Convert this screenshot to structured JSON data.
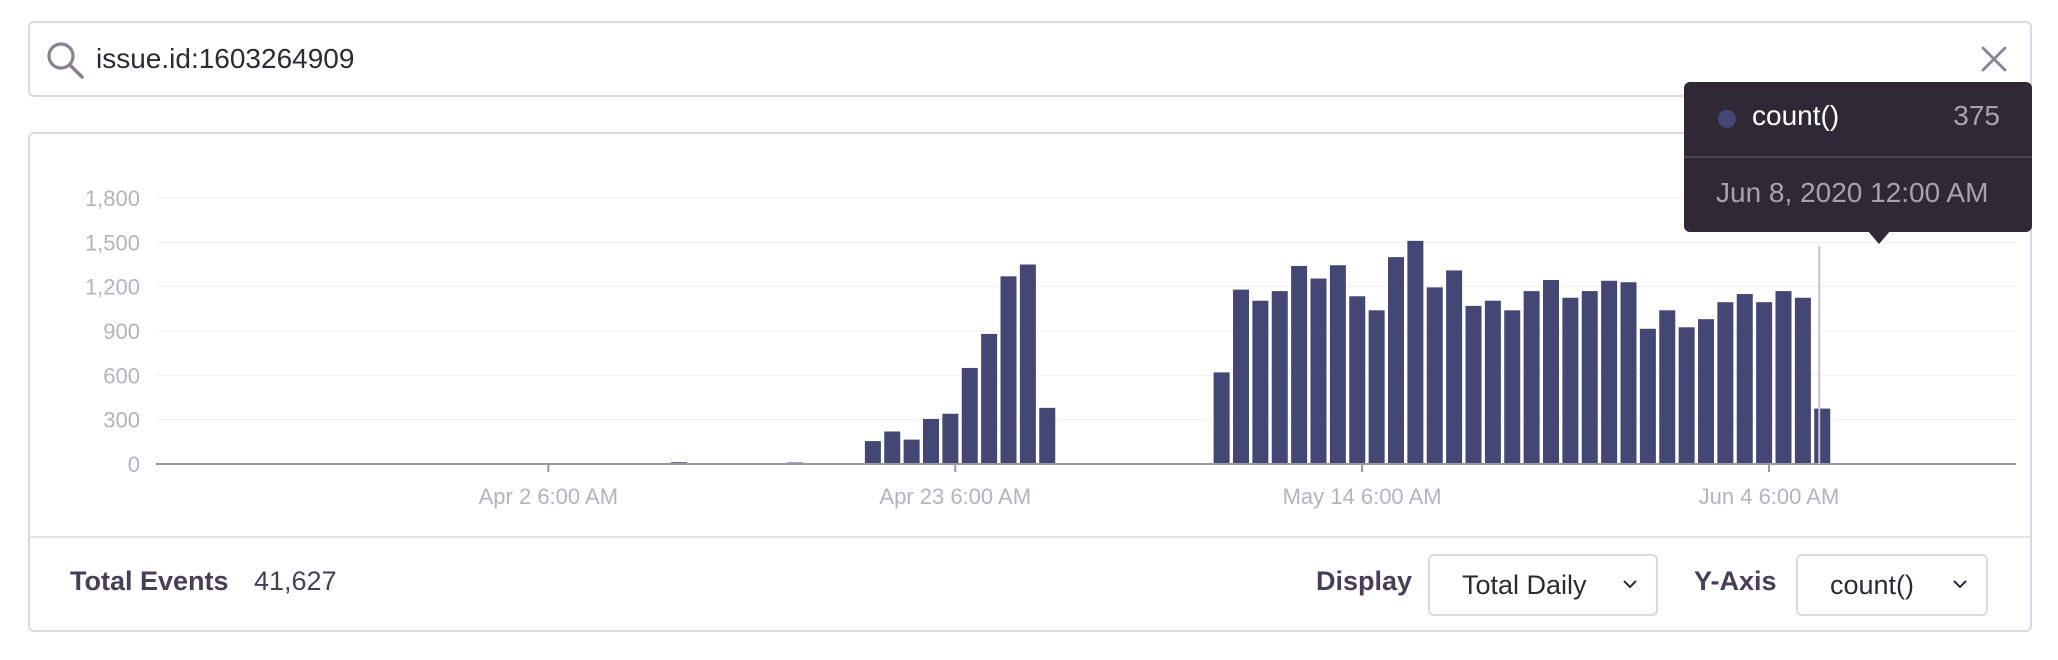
{
  "search": {
    "query": "issue.id:1603264909"
  },
  "chart_data": {
    "type": "bar",
    "series_name": "count()",
    "color": "#444674",
    "ylim": [
      0,
      1800
    ],
    "yticks": [
      0,
      300,
      600,
      900,
      1200,
      1500,
      1800
    ],
    "ytick_labels": [
      "0",
      "300",
      "600",
      "900",
      "1,200",
      "1,500",
      "1,800"
    ],
    "x_start_day": 0,
    "x_end_day": 96,
    "xtick_days": [
      20.25,
      41.25,
      62.25,
      83.25
    ],
    "xtick_labels": [
      "Apr 2 6:00 AM",
      "Apr 23 6:00 AM",
      "May 14 6:00 AM",
      "Jun 4 6:00 AM"
    ],
    "bars": [
      {
        "day": 25,
        "value": 5
      },
      {
        "day": 26,
        "value": 5
      },
      {
        "day": 27,
        "value": 12
      },
      {
        "day": 29,
        "value": 5
      },
      {
        "day": 33,
        "value": 10
      },
      {
        "day": 36,
        "value": 5
      },
      {
        "day": 37,
        "value": 155
      },
      {
        "day": 38,
        "value": 220
      },
      {
        "day": 39,
        "value": 165
      },
      {
        "day": 40,
        "value": 305
      },
      {
        "day": 41,
        "value": 340
      },
      {
        "day": 42,
        "value": 650
      },
      {
        "day": 43,
        "value": 880
      },
      {
        "day": 44,
        "value": 1270
      },
      {
        "day": 45,
        "value": 1350
      },
      {
        "day": 46,
        "value": 380
      },
      {
        "day": 55,
        "value": 620
      },
      {
        "day": 56,
        "value": 1180
      },
      {
        "day": 57,
        "value": 1105
      },
      {
        "day": 58,
        "value": 1170
      },
      {
        "day": 59,
        "value": 1340
      },
      {
        "day": 60,
        "value": 1255
      },
      {
        "day": 61,
        "value": 1345
      },
      {
        "day": 62,
        "value": 1135
      },
      {
        "day": 63,
        "value": 1040
      },
      {
        "day": 64,
        "value": 1400
      },
      {
        "day": 65,
        "value": 1510
      },
      {
        "day": 66,
        "value": 1195
      },
      {
        "day": 67,
        "value": 1310
      },
      {
        "day": 68,
        "value": 1070
      },
      {
        "day": 69,
        "value": 1105
      },
      {
        "day": 70,
        "value": 1040
      },
      {
        "day": 71,
        "value": 1170
      },
      {
        "day": 72,
        "value": 1245
      },
      {
        "day": 73,
        "value": 1125
      },
      {
        "day": 74,
        "value": 1170
      },
      {
        "day": 75,
        "value": 1240
      },
      {
        "day": 76,
        "value": 1230
      },
      {
        "day": 77,
        "value": 915
      },
      {
        "day": 78,
        "value": 1040
      },
      {
        "day": 79,
        "value": 925
      },
      {
        "day": 80,
        "value": 980
      },
      {
        "day": 81,
        "value": 1095
      },
      {
        "day": 82,
        "value": 1150
      },
      {
        "day": 83,
        "value": 1095
      },
      {
        "day": 84,
        "value": 1170
      },
      {
        "day": 85,
        "value": 1125
      },
      {
        "day": 86,
        "value": 375
      }
    ],
    "hover_day": 86
  },
  "tooltip": {
    "series": "count()",
    "value": "375",
    "date": "Jun 8, 2020 12:00 AM",
    "dot_color": "#444674"
  },
  "footer": {
    "total_label": "Total Events",
    "total_value": "41,627",
    "display_label": "Display",
    "display_value": "Total Daily",
    "yaxis_label": "Y-Axis",
    "yaxis_value": "count()"
  }
}
